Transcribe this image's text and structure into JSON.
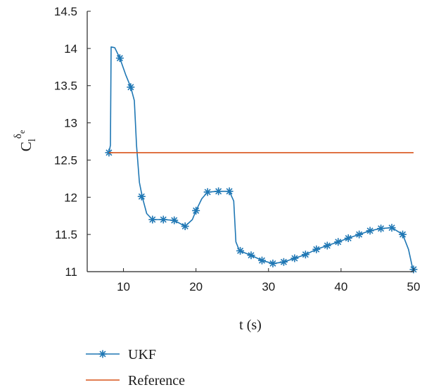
{
  "chart_data": {
    "type": "line",
    "xlabel": "t (s)",
    "ylabel": {
      "base": "C",
      "sub": "l",
      "sup": "δ",
      "supsub": "e"
    },
    "xlim": [
      5,
      50
    ],
    "ylim": [
      11,
      14.5
    ],
    "xticks": [
      10,
      20,
      30,
      40,
      50
    ],
    "yticks": [
      11,
      11.5,
      12,
      12.5,
      13,
      13.5,
      14,
      14.5
    ],
    "grid": false,
    "legend_position": "below-left",
    "series": [
      {
        "name": "UKF",
        "color": "#1f77b4",
        "marker": "asterisk",
        "line": [
          [
            8.0,
            12.6
          ],
          [
            8.2,
            12.7
          ],
          [
            8.3,
            14.02
          ],
          [
            8.8,
            14.01
          ],
          [
            9.5,
            13.87
          ],
          [
            10.3,
            13.65
          ],
          [
            11.0,
            13.48
          ],
          [
            11.5,
            13.3
          ],
          [
            11.8,
            12.7
          ],
          [
            12.2,
            12.2
          ],
          [
            12.6,
            12.0
          ],
          [
            13.2,
            11.78
          ],
          [
            14.0,
            11.7
          ],
          [
            15.5,
            11.7
          ],
          [
            17.0,
            11.69
          ],
          [
            18.5,
            11.61
          ],
          [
            19.5,
            11.7
          ],
          [
            20.0,
            11.82
          ],
          [
            20.8,
            11.98
          ],
          [
            21.6,
            12.07
          ],
          [
            23.1,
            12.08
          ],
          [
            24.6,
            12.08
          ],
          [
            25.2,
            11.95
          ],
          [
            25.5,
            11.4
          ],
          [
            26.0,
            11.28
          ],
          [
            27.6,
            11.22
          ],
          [
            29.1,
            11.15
          ],
          [
            30.6,
            11.11
          ],
          [
            32.1,
            11.13
          ],
          [
            33.6,
            11.18
          ],
          [
            35.1,
            11.23
          ],
          [
            36.6,
            11.3
          ],
          [
            38.1,
            11.35
          ],
          [
            39.6,
            11.4
          ],
          [
            41.0,
            11.45
          ],
          [
            42.5,
            11.5
          ],
          [
            44.0,
            11.55
          ],
          [
            45.5,
            11.58
          ],
          [
            47.0,
            11.59
          ],
          [
            48.5,
            11.5
          ],
          [
            49.3,
            11.3
          ],
          [
            49.9,
            11.03
          ]
        ],
        "markers": [
          [
            8.0,
            12.6
          ],
          [
            9.5,
            13.87
          ],
          [
            11.0,
            13.48
          ],
          [
            12.5,
            12.01
          ],
          [
            14.0,
            11.7
          ],
          [
            15.5,
            11.7
          ],
          [
            17.0,
            11.69
          ],
          [
            18.5,
            11.61
          ],
          [
            20.0,
            11.82
          ],
          [
            21.6,
            12.07
          ],
          [
            23.1,
            12.08
          ],
          [
            24.6,
            12.08
          ],
          [
            26.1,
            11.28
          ],
          [
            27.6,
            11.22
          ],
          [
            29.1,
            11.15
          ],
          [
            30.6,
            11.11
          ],
          [
            32.1,
            11.13
          ],
          [
            33.6,
            11.18
          ],
          [
            35.1,
            11.23
          ],
          [
            36.6,
            11.3
          ],
          [
            38.1,
            11.35
          ],
          [
            39.6,
            11.4
          ],
          [
            41.0,
            11.45
          ],
          [
            42.5,
            11.5
          ],
          [
            44.0,
            11.55
          ],
          [
            45.5,
            11.58
          ],
          [
            47.0,
            11.59
          ],
          [
            48.5,
            11.5
          ],
          [
            50.0,
            11.03
          ]
        ]
      },
      {
        "name": "Reference",
        "color": "#d95319",
        "line": [
          [
            8.0,
            12.6
          ],
          [
            50.0,
            12.6
          ]
        ]
      }
    ]
  }
}
